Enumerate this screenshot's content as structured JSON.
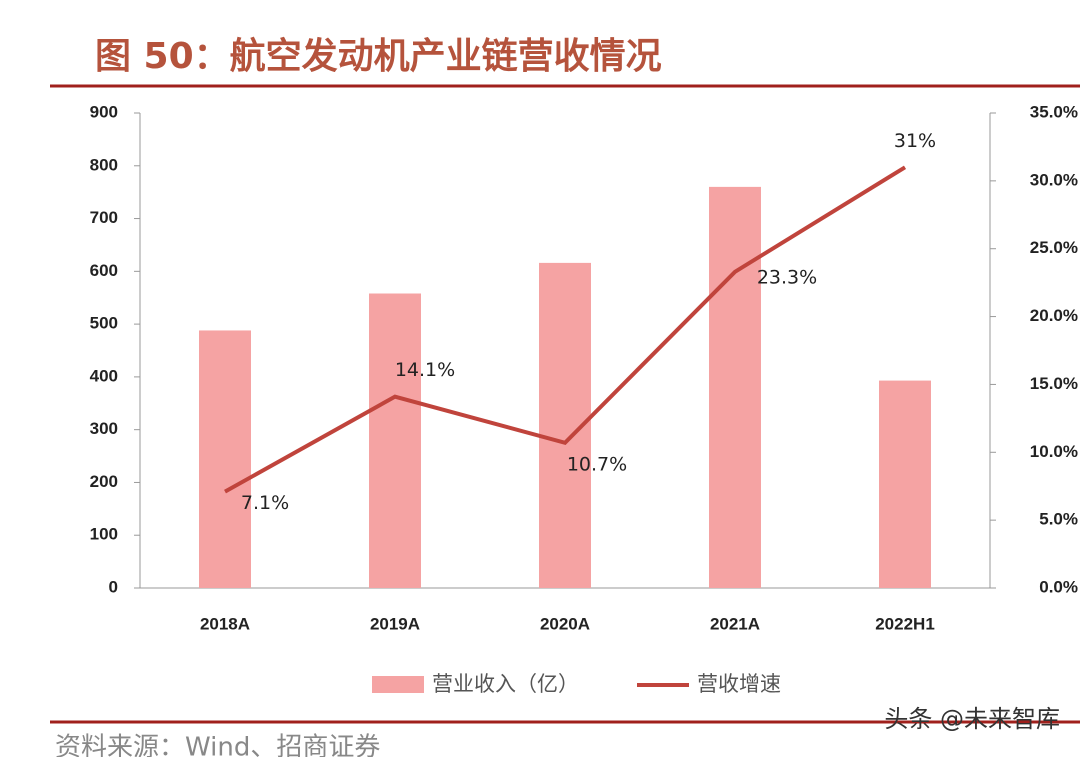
{
  "chart_data": {
    "type": "combo",
    "title": "图 50：航空发动机产业链营收情况",
    "source": "资料来源：Wind、招商证券",
    "watermark": "头条 @未来智库",
    "categories": [
      "2018A",
      "2019A",
      "2020A",
      "2021A",
      "2022H1"
    ],
    "series": [
      {
        "name": "营业收入（亿）",
        "type": "bar",
        "color": "#f5a3a3",
        "values": [
          488,
          558,
          616,
          760,
          393
        ]
      },
      {
        "name": "营收增速",
        "type": "line",
        "axis": "y2",
        "color": "#c0443c",
        "values": [
          7.1,
          14.1,
          10.7,
          23.3,
          31
        ],
        "value_labels": [
          "7.1%",
          "14.1%",
          "10.7%",
          "23.3%",
          "31%"
        ]
      }
    ],
    "ylim": [
      0,
      900
    ],
    "yticks": [
      0,
      100,
      200,
      300,
      400,
      500,
      600,
      700,
      800,
      900
    ],
    "y2lim": [
      0,
      35
    ],
    "y2ticks": [
      {
        "value": 0,
        "label": "0.0%"
      },
      {
        "value": 5,
        "label": "5.0%"
      },
      {
        "value": 10,
        "label": "10.0%"
      },
      {
        "value": 15,
        "label": "15.0%"
      },
      {
        "value": 20,
        "label": "20.0%"
      },
      {
        "value": 25,
        "label": "25.0%"
      },
      {
        "value": 30,
        "label": "30.0%"
      },
      {
        "value": 35,
        "label": "35.0%"
      }
    ],
    "legend": "bottom"
  }
}
